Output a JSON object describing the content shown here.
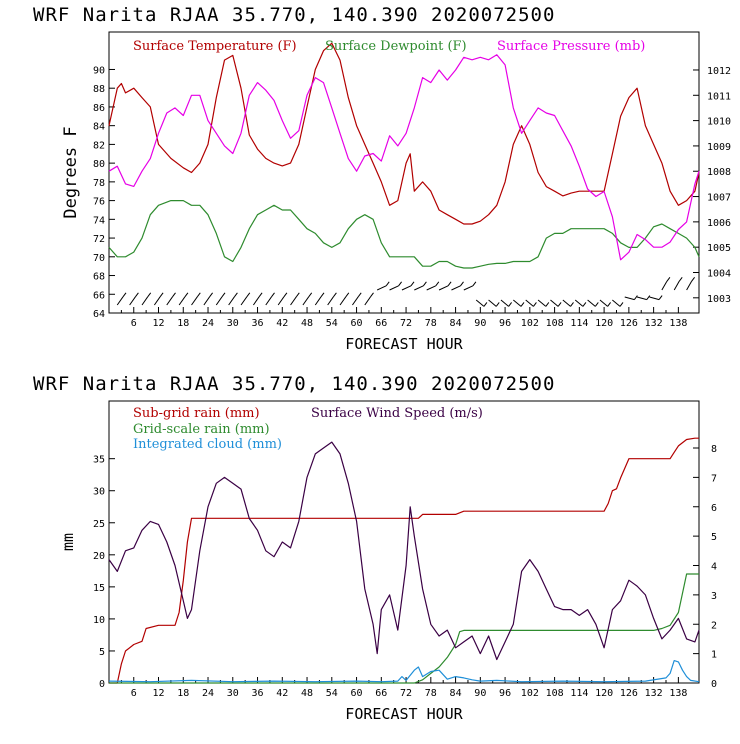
{
  "chart_data": [
    {
      "type": "line",
      "title": "WRF   Narita RJAA    35.770, 140.390  2020072500",
      "xlabel": "FORECAST HOUR",
      "ylabel": "Degrees F",
      "x_ticks": [
        "6",
        "12",
        "18",
        "24",
        "30",
        "36",
        "42",
        "48",
        "54",
        "60",
        "66",
        "72",
        "78",
        "84",
        "90",
        "96",
        "102",
        "108",
        "114",
        "120",
        "126",
        "132",
        "138"
      ],
      "xlim": [
        0,
        143
      ],
      "ylim": [
        64,
        94
      ],
      "y_ticks": [
        "64",
        "66",
        "68",
        "70",
        "72",
        "74",
        "76",
        "78",
        "80",
        "82",
        "84",
        "86",
        "88",
        "90"
      ],
      "y2lim": [
        1002.4,
        1013.5
      ],
      "y2_ticks": [
        "1003",
        "1004",
        "1005",
        "1006",
        "1007",
        "1008",
        "1009",
        "1010",
        "1011",
        "1012"
      ],
      "legend": [
        "Surface Temperature (F)",
        "Surface Dewpoint (F)",
        "Surface Pressure (mb)"
      ],
      "legend_position": "top",
      "wind_barbs": "row of wind barbs along bottom of panel",
      "series": [
        {
          "name": "Surface Temperature (F)",
          "color": "#b20000",
          "axis": "left",
          "x": [
            0,
            2,
            3,
            4,
            6,
            8,
            10,
            12,
            15,
            18,
            20,
            22,
            24,
            26,
            28,
            30,
            32,
            34,
            36,
            38,
            40,
            42,
            44,
            46,
            48,
            50,
            52,
            54,
            56,
            58,
            60,
            62,
            64,
            66,
            68,
            70,
            72,
            73,
            74,
            76,
            78,
            80,
            82,
            84,
            86,
            88,
            90,
            92,
            94,
            96,
            98,
            100,
            102,
            104,
            106,
            108,
            110,
            112,
            114,
            116,
            118,
            120,
            122,
            124,
            126,
            128,
            130,
            132,
            134,
            136,
            138,
            140,
            142,
            143
          ],
          "y": [
            84,
            88,
            88.5,
            87.5,
            88,
            87,
            86,
            82,
            80.5,
            79.5,
            79,
            80,
            82,
            87,
            91,
            91.5,
            88,
            83,
            81.5,
            80.5,
            80,
            79.7,
            80,
            82,
            86,
            90,
            92,
            92.8,
            91,
            87,
            84,
            82,
            80,
            78,
            75.5,
            76,
            80,
            81,
            77,
            78,
            77,
            75,
            74.5,
            74,
            73.5,
            73.5,
            73.8,
            74.5,
            75.5,
            78,
            82,
            84,
            82,
            79,
            77.5,
            77,
            76.5,
            76.8,
            77,
            77,
            77,
            77,
            81,
            85,
            87,
            88,
            84,
            82,
            80,
            77,
            75.5,
            76,
            77,
            79
          ]
        },
        {
          "name": "Surface Dewpoint (F)",
          "color": "#2e8b2e",
          "axis": "left",
          "x": [
            0,
            2,
            4,
            6,
            8,
            10,
            12,
            15,
            18,
            20,
            22,
            24,
            26,
            28,
            30,
            32,
            34,
            36,
            38,
            40,
            42,
            44,
            46,
            48,
            50,
            52,
            54,
            56,
            58,
            60,
            62,
            64,
            66,
            68,
            70,
            72,
            74,
            76,
            78,
            80,
            82,
            84,
            86,
            88,
            90,
            92,
            94,
            96,
            98,
            100,
            102,
            104,
            106,
            108,
            110,
            112,
            114,
            116,
            118,
            120,
            122,
            124,
            126,
            128,
            130,
            132,
            134,
            136,
            138,
            140,
            142,
            143
          ],
          "y": [
            71,
            70,
            70,
            70.5,
            72,
            74.5,
            75.5,
            76,
            76,
            75.5,
            75.5,
            74.5,
            72.5,
            70,
            69.5,
            71,
            73,
            74.5,
            75,
            75.5,
            75,
            75,
            74,
            73,
            72.5,
            71.5,
            71,
            71.5,
            73,
            74,
            74.5,
            74,
            71.5,
            70,
            70,
            70,
            70,
            69,
            69,
            69.5,
            69.5,
            69,
            68.8,
            68.8,
            69,
            69.2,
            69.3,
            69.3,
            69.5,
            69.5,
            69.5,
            70,
            72,
            72.5,
            72.5,
            73,
            73,
            73,
            73,
            73,
            72.5,
            71.5,
            71,
            71,
            72,
            73.2,
            73.5,
            73,
            72.5,
            72,
            71,
            70
          ]
        },
        {
          "name": "Surface Pressure (mb)",
          "color": "#e600e6",
          "axis": "right",
          "x": [
            0,
            2,
            4,
            6,
            8,
            10,
            12,
            14,
            16,
            18,
            20,
            22,
            24,
            26,
            28,
            30,
            32,
            34,
            36,
            38,
            40,
            42,
            44,
            46,
            48,
            50,
            52,
            54,
            56,
            58,
            60,
            62,
            64,
            66,
            68,
            70,
            72,
            74,
            76,
            78,
            80,
            82,
            84,
            86,
            88,
            90,
            92,
            94,
            96,
            98,
            100,
            102,
            104,
            106,
            108,
            110,
            112,
            114,
            116,
            118,
            120,
            122,
            124,
            126,
            128,
            130,
            132,
            134,
            136,
            138,
            140,
            142,
            143
          ],
          "y": [
            1008,
            1008.2,
            1007.5,
            1007.4,
            1008,
            1008.5,
            1009.5,
            1010.3,
            1010.5,
            1010.2,
            1011,
            1011,
            1010,
            1009.5,
            1009,
            1008.7,
            1009.5,
            1011,
            1011.5,
            1011.2,
            1010.8,
            1010,
            1009.3,
            1009.6,
            1011,
            1011.7,
            1011.5,
            1010.5,
            1009.5,
            1008.5,
            1008,
            1008.6,
            1008.7,
            1008.4,
            1009.4,
            1009,
            1009.5,
            1010.5,
            1011.7,
            1011.5,
            1012,
            1011.6,
            1012,
            1012.5,
            1012.4,
            1012.5,
            1012.4,
            1012.6,
            1012.2,
            1010.5,
            1009.5,
            1010,
            1010.5,
            1010.3,
            1010.2,
            1009.6,
            1009,
            1008.2,
            1007.3,
            1007,
            1007.2,
            1006.2,
            1004.5,
            1004.8,
            1005.5,
            1005.3,
            1005,
            1005,
            1005.2,
            1005.7,
            1006,
            1007.5,
            1008
          ]
        }
      ]
    },
    {
      "type": "line",
      "title": "WRF   Narita RJAA    35.770, 140.390  2020072500",
      "xlabel": "FORECAST HOUR",
      "ylabel": "mm",
      "x_ticks": [
        "6",
        "12",
        "18",
        "24",
        "30",
        "36",
        "42",
        "48",
        "54",
        "60",
        "66",
        "72",
        "78",
        "84",
        "90",
        "96",
        "102",
        "108",
        "114",
        "120",
        "126",
        "132",
        "138"
      ],
      "xlim": [
        0,
        143
      ],
      "ylim": [
        0,
        44
      ],
      "y_ticks": [
        "0",
        "5",
        "10",
        "15",
        "20",
        "25",
        "30",
        "35"
      ],
      "y2lim": [
        0,
        9.6
      ],
      "y2_ticks": [
        "0",
        "1",
        "2",
        "3",
        "4",
        "5",
        "6",
        "7",
        "8"
      ],
      "legend": [
        "Sub-grid rain (mm)",
        "Grid-scale rain (mm)",
        "Integrated cloud (mm)",
        "Surface Wind Speed (m/s)"
      ],
      "legend_position": "top-left",
      "series": [
        {
          "name": "Sub-grid rain (mm)",
          "color": "#b20000",
          "axis": "left",
          "x": [
            0,
            2,
            3,
            4,
            6,
            8,
            9,
            12,
            14,
            16,
            17,
            18,
            19,
            20,
            24,
            30,
            36,
            42,
            48,
            54,
            60,
            66,
            72,
            75,
            76,
            80,
            84,
            86,
            90,
            96,
            102,
            108,
            114,
            120,
            121,
            122,
            123,
            124,
            126,
            128,
            132,
            134,
            136,
            137,
            138,
            140,
            142,
            143
          ],
          "y": [
            0,
            0,
            3,
            5,
            6,
            6.5,
            8.5,
            9,
            9,
            9,
            11,
            16,
            22,
            25.7,
            25.7,
            25.7,
            25.7,
            25.7,
            25.7,
            25.7,
            25.7,
            25.7,
            25.7,
            25.7,
            26.3,
            26.3,
            26.3,
            26.8,
            26.8,
            26.8,
            26.8,
            26.8,
            26.8,
            26.8,
            28,
            30,
            30.3,
            32,
            35,
            35,
            35,
            35,
            35,
            36,
            37,
            38,
            38.2,
            38.2
          ]
        },
        {
          "name": "Grid-scale rain (mm)",
          "color": "#2e8b2e",
          "axis": "left",
          "x": [
            0,
            74,
            76,
            78,
            80,
            82,
            84,
            85,
            86,
            90,
            100,
            110,
            120,
            130,
            132,
            134,
            136,
            138,
            140,
            143
          ],
          "y": [
            0,
            0,
            0.5,
            1.5,
            2.5,
            4,
            6,
            8,
            8.2,
            8.2,
            8.2,
            8.2,
            8.2,
            8.2,
            8.2,
            8.5,
            9,
            11,
            17,
            17
          ]
        },
        {
          "name": "Integrated cloud (mm)",
          "color": "#1f8fd8",
          "axis": "left",
          "x": [
            0,
            10,
            20,
            30,
            40,
            50,
            60,
            66,
            70,
            71,
            72,
            74,
            75,
            76,
            78,
            80,
            82,
            84,
            86,
            88,
            90,
            94,
            100,
            110,
            120,
            130,
            135,
            136,
            137,
            138,
            139,
            140,
            141,
            143
          ],
          "y": [
            0.3,
            0.2,
            0.4,
            0.2,
            0.3,
            0.2,
            0.3,
            0.2,
            0.3,
            1,
            0.4,
            2,
            2.5,
            1,
            1.8,
            2,
            0.6,
            1,
            0.8,
            0.5,
            0.3,
            0.4,
            0.2,
            0.3,
            0.2,
            0.3,
            0.8,
            1.5,
            3.5,
            3.3,
            2,
            1,
            0.4,
            0.2
          ]
        },
        {
          "name": "Surface Wind Speed (m/s)",
          "color": "#3a0044",
          "axis": "right",
          "x": [
            0,
            2,
            4,
            6,
            8,
            10,
            12,
            14,
            16,
            18,
            19,
            20,
            22,
            24,
            26,
            28,
            30,
            32,
            34,
            36,
            38,
            40,
            42,
            44,
            46,
            48,
            50,
            52,
            54,
            56,
            58,
            60,
            62,
            64,
            65,
            66,
            68,
            70,
            72,
            73,
            74,
            76,
            78,
            80,
            82,
            84,
            86,
            88,
            90,
            92,
            94,
            96,
            98,
            100,
            102,
            104,
            106,
            108,
            110,
            112,
            114,
            116,
            118,
            120,
            122,
            124,
            126,
            128,
            130,
            132,
            134,
            136,
            138,
            140,
            142,
            143
          ],
          "y": [
            4.2,
            3.8,
            4.5,
            4.6,
            5.2,
            5.5,
            5.4,
            4.8,
            4,
            2.8,
            2.2,
            2.5,
            4.5,
            6,
            6.8,
            7,
            6.8,
            6.6,
            5.6,
            5.2,
            4.5,
            4.3,
            4.8,
            4.6,
            5.5,
            7,
            7.8,
            8,
            8.2,
            7.8,
            6.8,
            5.5,
            3.2,
            2,
            1,
            2.5,
            3,
            1.8,
            4,
            6,
            5,
            3.2,
            2,
            1.6,
            1.8,
            1.2,
            1.4,
            1.6,
            1,
            1.6,
            0.8,
            1.4,
            2,
            3.8,
            4.2,
            3.8,
            3.2,
            2.6,
            2.5,
            2.5,
            2.3,
            2.5,
            2,
            1.2,
            2.5,
            2.8,
            3.5,
            3.3,
            3,
            2.2,
            1.5,
            1.8,
            2.2,
            1.5,
            1.4,
            1.8
          ]
        }
      ]
    }
  ]
}
